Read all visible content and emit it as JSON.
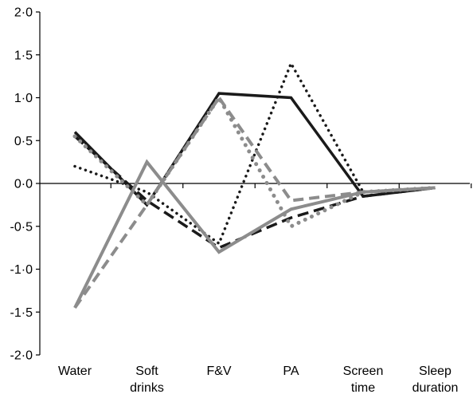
{
  "chart_data": {
    "type": "line",
    "title": "",
    "xlabel": "",
    "ylabel": "",
    "ylim": [
      -2.0,
      2.0
    ],
    "yticks": [
      "-2·0",
      "-1·5",
      "-1·0",
      "-0·5",
      "0·0",
      "0·5",
      "1·0",
      "1·5",
      "2·0"
    ],
    "categories": [
      [
        "Water"
      ],
      [
        "Soft",
        "drinks"
      ],
      [
        "F&V"
      ],
      [
        "PA"
      ],
      [
        "Screen",
        "time"
      ],
      [
        "Sleep",
        "duration"
      ]
    ],
    "grid": false,
    "legend": "none",
    "series": [
      {
        "style": "solid",
        "color": "#1a1a1a",
        "values": [
          0.6,
          -0.25,
          1.05,
          1.0,
          -0.15,
          -0.05
        ]
      },
      {
        "style": "dashed",
        "color": "#1a1a1a",
        "values": [
          0.55,
          -0.2,
          -0.75,
          -0.4,
          -0.15,
          -0.05
        ]
      },
      {
        "style": "dotted",
        "color": "#1a1a1a",
        "values": [
          0.2,
          -0.1,
          -0.7,
          1.4,
          -0.1,
          -0.05
        ]
      },
      {
        "style": "solid",
        "color": "#8c8c8c",
        "values": [
          -1.45,
          0.25,
          -0.8,
          -0.3,
          -0.1,
          -0.05
        ]
      },
      {
        "style": "dashed",
        "color": "#8c8c8c",
        "values": [
          -1.45,
          -0.25,
          1.0,
          -0.2,
          -0.1,
          -0.05
        ]
      },
      {
        "style": "dotted",
        "color": "#8c8c8c",
        "values": [
          0.55,
          -0.25,
          1.0,
          -0.5,
          -0.1,
          -0.05
        ]
      }
    ]
  }
}
